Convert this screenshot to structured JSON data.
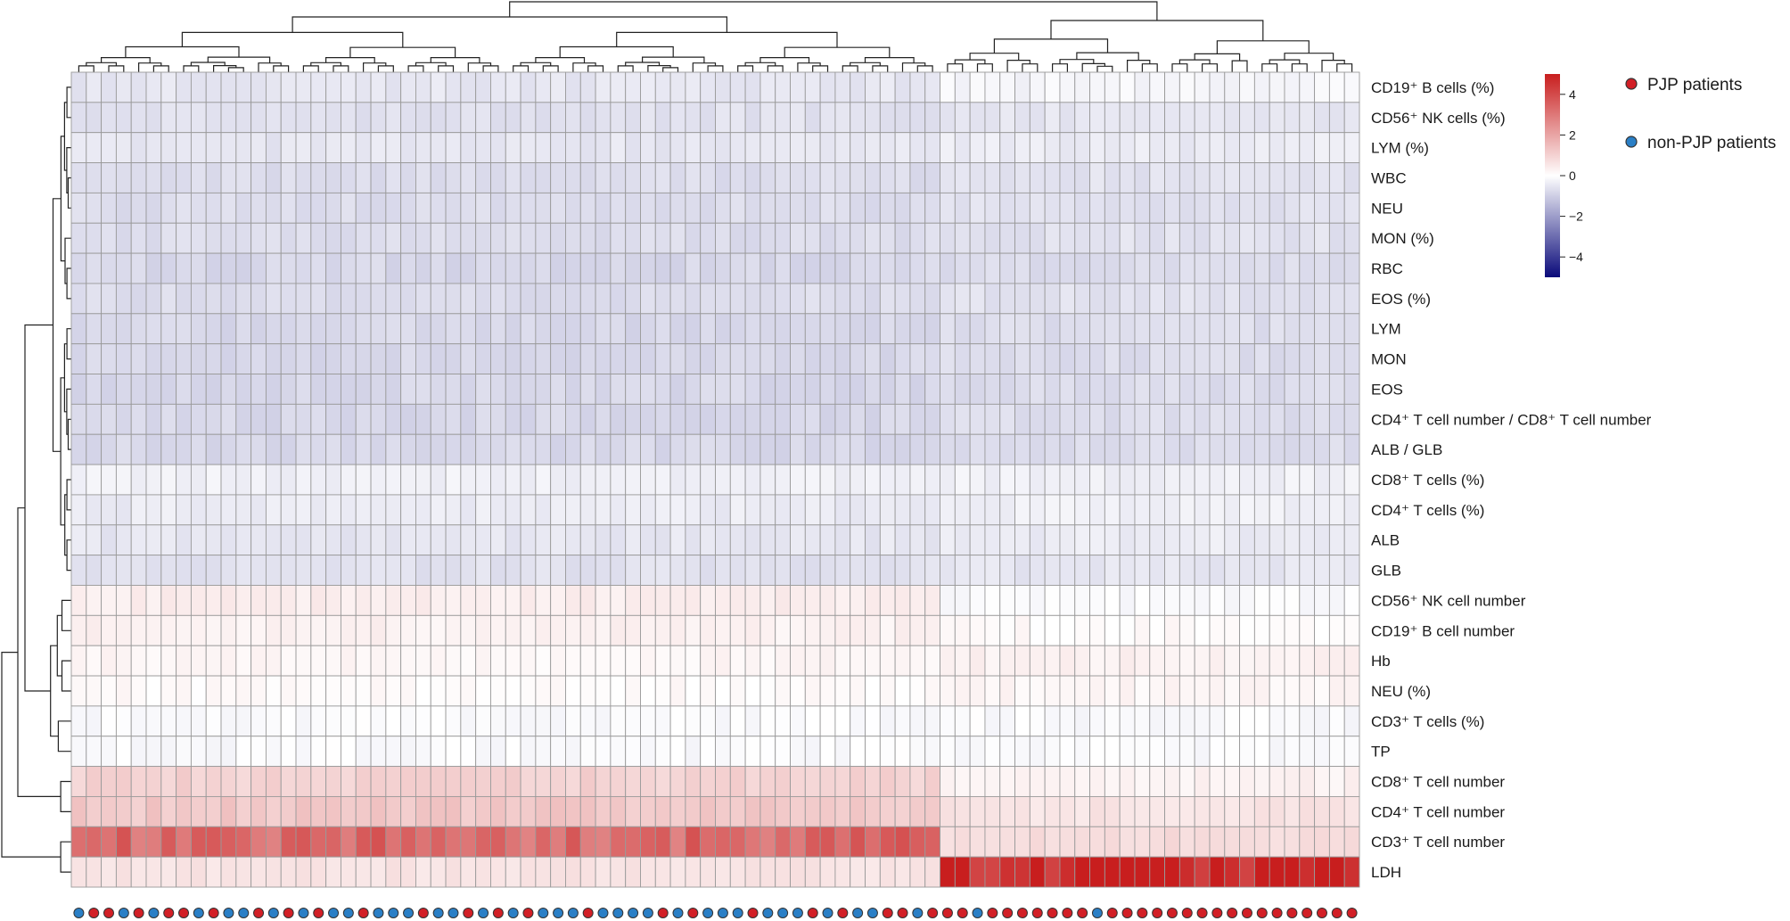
{
  "chart_data": {
    "type": "heatmap",
    "rows": [
      "CD19⁺ B cells (%)",
      "CD56⁺ NK cells (%)",
      "LYM (%)",
      "WBC",
      "NEU",
      "MON (%)",
      "RBC",
      "EOS (%)",
      "LYM",
      "MON",
      "EOS",
      "CD4⁺ T cell number / CD8⁺ T cell number",
      "ALB / GLB",
      "CD8⁺ T cells (%)",
      "CD4⁺ T cells (%)",
      "ALB",
      "GLB",
      "CD56⁺ NK cell number",
      "CD19⁺ B cell number",
      "Hb",
      "NEU (%)",
      "CD3⁺ T cells (%)",
      "TP",
      "CD8⁺ T cell number",
      "CD4⁺ T cell number",
      "CD3⁺ T cell number",
      "LDH"
    ],
    "n_columns": 86,
    "group_start_column": 58,
    "row_values": {
      "left_group": [
        -0.5,
        -0.6,
        -0.5,
        -0.7,
        -0.7,
        -0.7,
        -0.8,
        -0.7,
        -0.8,
        -0.8,
        -0.8,
        -0.8,
        -0.8,
        -0.3,
        -0.4,
        -0.5,
        -0.6,
        0.4,
        0.3,
        0.2,
        0.1,
        -0.1,
        -0.1,
        1.0,
        1.2,
        3.3,
        0.6
      ],
      "right_group": [
        -0.2,
        -0.5,
        -0.4,
        -0.6,
        -0.6,
        -0.6,
        -0.7,
        -0.6,
        -0.7,
        -0.7,
        -0.7,
        -0.7,
        -0.7,
        -0.3,
        -0.3,
        -0.4,
        -0.5,
        -0.1,
        0.1,
        0.3,
        0.2,
        -0.1,
        -0.1,
        0.3,
        0.6,
        0.8,
        5.0
      ]
    },
    "column_groups": [
      "blue",
      "red",
      "red",
      "blue",
      "red",
      "blue",
      "red",
      "red",
      "blue",
      "red",
      "blue",
      "blue",
      "red",
      "blue",
      "red",
      "blue",
      "red",
      "blue",
      "blue",
      "red",
      "blue",
      "blue",
      "blue",
      "red",
      "blue",
      "blue",
      "red",
      "blue",
      "red",
      "blue",
      "red",
      "blue",
      "blue",
      "blue",
      "red",
      "blue",
      "blue",
      "blue",
      "blue",
      "red",
      "blue",
      "red",
      "blue",
      "blue",
      "blue",
      "red",
      "blue",
      "blue",
      "blue",
      "red",
      "blue",
      "red",
      "blue",
      "blue",
      "red",
      "red",
      "blue",
      "red",
      "red",
      "red",
      "blue",
      "red",
      "red",
      "red",
      "red",
      "red",
      "red",
      "red",
      "blue",
      "red",
      "red",
      "red",
      "red",
      "red",
      "red",
      "red",
      "red",
      "red",
      "red",
      "red",
      "red",
      "red",
      "red",
      "red",
      "red",
      "red"
    ],
    "color_scale": {
      "ticks": [
        "4",
        "2",
        "0",
        "−2",
        "−4"
      ],
      "tick_values": [
        4,
        2,
        0,
        -2,
        -4
      ],
      "range": [
        -5,
        5
      ],
      "low_color": "#0a0a7a",
      "mid_color": "#ffffff",
      "high_color": "#c81e1e"
    },
    "legend": [
      {
        "label": "PJP patients",
        "color": "#d21f26"
      },
      {
        "label": "non-PJP patients",
        "color": "#2a7fc6"
      }
    ],
    "dendrogram_top": true,
    "dendrogram_left": true,
    "grid": true
  }
}
